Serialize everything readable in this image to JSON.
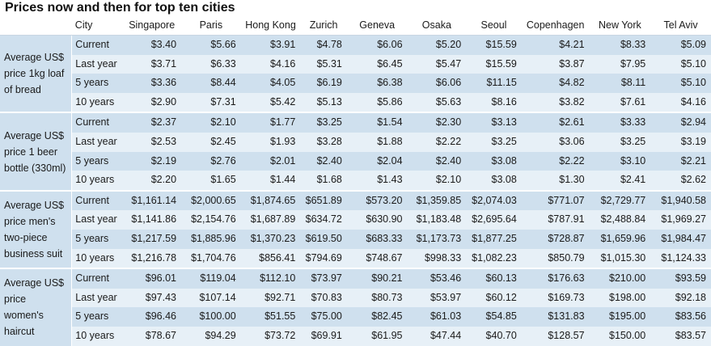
{
  "title": "Prices now and then for top ten cities",
  "header": {
    "city_label": "City",
    "cities": [
      "Singapore",
      "Paris",
      "Hong Kong",
      "Zurich",
      "Geneva",
      "Osaka",
      "Seoul",
      "Copenhagen",
      "New York",
      "Tel Aviv"
    ]
  },
  "groups": [
    {
      "label": "Average US$ price 1kg loaf of bread",
      "rows": [
        {
          "period": "Current",
          "values": [
            "$3.40",
            "$5.66",
            "$3.91",
            "$4.78",
            "$6.06",
            "$5.20",
            "$15.59",
            "$4.21",
            "$8.33",
            "$5.09"
          ]
        },
        {
          "period": "Last year",
          "values": [
            "$3.71",
            "$6.33",
            "$4.16",
            "$5.31",
            "$6.45",
            "$5.47",
            "$15.59",
            "$3.87",
            "$7.95",
            "$5.10"
          ]
        },
        {
          "period": "5 years",
          "values": [
            "$3.36",
            "$8.44",
            "$4.05",
            "$6.19",
            "$6.38",
            "$6.06",
            "$11.15",
            "$4.82",
            "$8.11",
            "$5.10"
          ]
        },
        {
          "period": "10 years",
          "values": [
            "$2.90",
            "$7.31",
            "$5.42",
            "$5.13",
            "$5.86",
            "$5.63",
            "$8.16",
            "$3.82",
            "$7.61",
            "$4.16"
          ]
        }
      ]
    },
    {
      "label": "Average US$ price 1 beer bottle (330ml)",
      "rows": [
        {
          "period": "Current",
          "values": [
            "$2.37",
            "$2.10",
            "$1.77",
            "$3.25",
            "$1.54",
            "$2.30",
            "$3.13",
            "$2.61",
            "$3.33",
            "$2.94"
          ]
        },
        {
          "period": "Last year",
          "values": [
            "$2.53",
            "$2.45",
            "$1.93",
            "$3.28",
            "$1.88",
            "$2.22",
            "$3.25",
            "$3.06",
            "$3.25",
            "$3.19"
          ]
        },
        {
          "period": "5 years",
          "values": [
            "$2.19",
            "$2.76",
            "$2.01",
            "$2.40",
            "$2.04",
            "$2.40",
            "$3.08",
            "$2.22",
            "$3.10",
            "$2.21"
          ]
        },
        {
          "period": "10 years",
          "values": [
            "$2.20",
            "$1.65",
            "$1.44",
            "$1.68",
            "$1.43",
            "$2.10",
            "$3.08",
            "$1.30",
            "$2.41",
            "$2.62"
          ]
        }
      ]
    },
    {
      "label": "Average US$ price men's two-piece business suit",
      "rows": [
        {
          "period": "Current",
          "values": [
            "$1,161.14",
            "$2,000.65",
            "$1,874.65",
            "$651.89",
            "$573.20",
            "$1,359.85",
            "$2,074.03",
            "$771.07",
            "$2,729.77",
            "$1,940.58"
          ]
        },
        {
          "period": "Last year",
          "values": [
            "$1,141.86",
            "$2,154.76",
            "$1,687.89",
            "$634.72",
            "$630.90",
            "$1,183.48",
            "$2,695.64",
            "$787.91",
            "$2,488.84",
            "$1,969.27"
          ]
        },
        {
          "period": "5 years",
          "values": [
            "$1,217.59",
            "$1,885.96",
            "$1,370.23",
            "$619.50",
            "$683.33",
            "$1,173.73",
            "$1,877.25",
            "$728.87",
            "$1,659.96",
            "$1,984.47"
          ]
        },
        {
          "period": "10 years",
          "values": [
            "$1,216.78",
            "$1,704.76",
            "$856.41",
            "$794.69",
            "$748.67",
            "$998.33",
            "$1,082.23",
            "$850.79",
            "$1,015.30",
            "$1,124.33"
          ]
        }
      ]
    },
    {
      "label": "Average US$ price women's haircut",
      "rows": [
        {
          "period": "Current",
          "values": [
            "$96.01",
            "$119.04",
            "$112.10",
            "$73.97",
            "$90.21",
            "$53.46",
            "$60.13",
            "$176.63",
            "$210.00",
            "$93.59"
          ]
        },
        {
          "period": "Last year",
          "values": [
            "$97.43",
            "$107.14",
            "$92.71",
            "$70.83",
            "$80.73",
            "$53.97",
            "$60.12",
            "$169.73",
            "$198.00",
            "$92.18"
          ]
        },
        {
          "period": "5 years",
          "values": [
            "$96.46",
            "$100.00",
            "$51.55",
            "$75.00",
            "$82.45",
            "$61.03",
            "$54.85",
            "$131.83",
            "$195.00",
            "$83.56"
          ]
        },
        {
          "period": "10 years",
          "values": [
            "$78.67",
            "$94.29",
            "$73.72",
            "$69.91",
            "$61.95",
            "$47.44",
            "$40.70",
            "$128.57",
            "$150.00",
            "$83.57"
          ]
        }
      ]
    }
  ]
}
